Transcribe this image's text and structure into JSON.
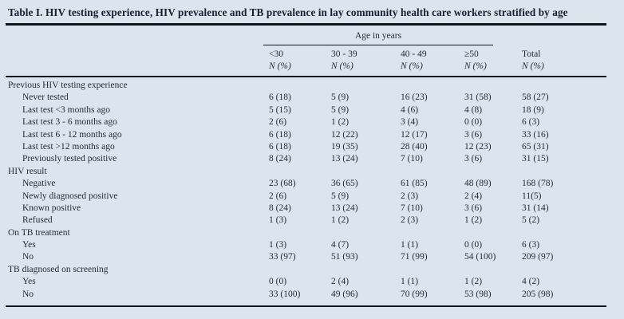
{
  "page": {
    "title": "Table I. HIV testing experience, HIV prevalence and TB prevalence in lay community health care workers stratified by age"
  },
  "table": {
    "age_span_header": "Age in years",
    "columns": [
      "<30",
      "30 - 39",
      "40 - 49",
      "≥50",
      "Total"
    ],
    "column_subheader": "N (%)",
    "sections": [
      {
        "header": "Previous HIV testing experience",
        "rows": [
          {
            "label": "Never tested",
            "values": [
              "6 (18)",
              "5 (9)",
              "16 (23)",
              "31 (58)",
              "58 (27)"
            ]
          },
          {
            "label": "Last test <3 months ago",
            "values": [
              "5 (15)",
              "5 (9)",
              "4 (6)",
              "4 (8)",
              "18 (9)"
            ]
          },
          {
            "label": "Last test 3 - 6 months ago",
            "values": [
              "2 (6)",
              "1 (2)",
              "3 (4)",
              "0 (0)",
              "6 (3)"
            ]
          },
          {
            "label": "Last test 6 - 12 months ago",
            "values": [
              "6 (18)",
              "12 (22)",
              "12 (17)",
              "3 (6)",
              "33 (16)"
            ]
          },
          {
            "label": "Last test >12 months ago",
            "values": [
              "6 (18)",
              "19 (35)",
              "28 (40)",
              "12 (23)",
              "65 (31)"
            ]
          },
          {
            "label": "Previously tested positive",
            "values": [
              "8 (24)",
              "13 (24)",
              "7 (10)",
              "3 (6)",
              "31 (15)"
            ]
          }
        ]
      },
      {
        "header": "HIV result",
        "rows": [
          {
            "label": "Negative",
            "values": [
              "23 (68)",
              "36 (65)",
              "61 (85)",
              "48 (89)",
              "168 (78)"
            ]
          },
          {
            "label": "Newly diagnosed positive",
            "values": [
              "2 (6)",
              "5 (9)",
              "2 (3)",
              "2 (4)",
              "11(5)"
            ]
          },
          {
            "label": "Known positive",
            "values": [
              "8 (24)",
              "13 (24)",
              "7 (10)",
              "3 (6)",
              "31 (14)"
            ]
          },
          {
            "label": "Refused",
            "values": [
              "1 (3)",
              "1 (2)",
              "2 (3)",
              "1 (2)",
              "5 (2)"
            ]
          }
        ]
      },
      {
        "header": "On TB treatment",
        "rows": [
          {
            "label": "Yes",
            "values": [
              "1 (3)",
              "4 (7)",
              "1 (1)",
              "0 (0)",
              "6 (3)"
            ]
          },
          {
            "label": "No",
            "values": [
              "33 (97)",
              "51 (93)",
              "71 (99)",
              "54 (100)",
              "209 (97)"
            ]
          }
        ]
      },
      {
        "header": "TB diagnosed on screening",
        "rows": [
          {
            "label": "Yes",
            "values": [
              "0 (0)",
              "2 (4)",
              "1 (1)",
              "1 (2)",
              "4 (2)"
            ]
          },
          {
            "label": "No",
            "values": [
              "33 (100)",
              "49 (96)",
              "70 (99)",
              "53 (98)",
              "205 (98)"
            ]
          }
        ]
      }
    ]
  },
  "colors": {
    "background": "#dce4ee",
    "text": "#232d3a",
    "title_text": "#16202e",
    "rule": "#10151c"
  }
}
